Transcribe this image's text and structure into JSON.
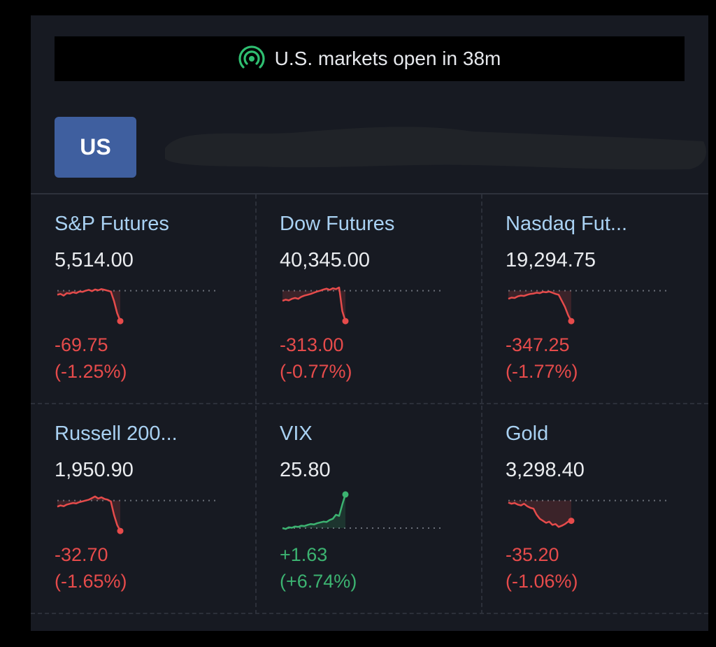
{
  "banner": {
    "text": "U.S. markets open in 38m",
    "icon": "broadcast-icon",
    "icon_color": "#2fbf71"
  },
  "region_tab": {
    "label": "US",
    "color": "#3f5f9f"
  },
  "colors": {
    "positive": "#3cb371",
    "negative": "#e64b4b",
    "name": "#a9d1f2",
    "price": "#eaecef"
  },
  "cards": [
    {
      "name": "S&P Futures",
      "price": "5,514.00",
      "change": "-69.75",
      "change_pct": "(-1.25%)",
      "direction": "down",
      "spark": [
        0.7,
        0.72,
        0.68,
        0.74,
        0.73,
        0.76,
        0.74,
        0.78,
        0.77,
        0.8,
        0.82,
        0.79,
        0.83,
        0.81,
        0.84,
        0.82,
        0.8,
        0.78,
        0.55,
        0.25,
        0.05
      ]
    },
    {
      "name": "Dow Futures",
      "price": "40,345.00",
      "change": "-313.00",
      "change_pct": "(-0.77%)",
      "direction": "down",
      "spark": [
        0.55,
        0.58,
        0.56,
        0.6,
        0.62,
        0.6,
        0.65,
        0.68,
        0.7,
        0.72,
        0.75,
        0.78,
        0.8,
        0.83,
        0.85,
        0.82,
        0.86,
        0.84,
        0.88,
        0.3,
        0.05
      ]
    },
    {
      "name": "Nasdaq Fut...",
      "price": "19,294.75",
      "change": "-347.25",
      "change_pct": "(-1.77%)",
      "direction": "down",
      "spark": [
        0.6,
        0.63,
        0.62,
        0.66,
        0.68,
        0.67,
        0.7,
        0.72,
        0.73,
        0.75,
        0.74,
        0.77,
        0.76,
        0.78,
        0.75,
        0.72,
        0.7,
        0.55,
        0.4,
        0.2,
        0.05
      ]
    },
    {
      "name": "Russell 200...",
      "price": "1,950.90",
      "change": "-32.70",
      "change_pct": "(-1.65%)",
      "direction": "down",
      "spark": [
        0.65,
        0.68,
        0.66,
        0.7,
        0.72,
        0.74,
        0.73,
        0.76,
        0.78,
        0.8,
        0.82,
        0.86,
        0.9,
        0.85,
        0.88,
        0.84,
        0.82,
        0.78,
        0.45,
        0.2,
        0.05
      ]
    },
    {
      "name": "VIX",
      "price": "25.80",
      "change": "+1.63",
      "change_pct": "(+6.74%)",
      "direction": "up",
      "spark": [
        0.12,
        0.1,
        0.14,
        0.13,
        0.16,
        0.15,
        0.18,
        0.17,
        0.2,
        0.22,
        0.21,
        0.24,
        0.26,
        0.28,
        0.27,
        0.32,
        0.35,
        0.45,
        0.42,
        0.7,
        0.95
      ]
    },
    {
      "name": "Gold",
      "price": "3,298.40",
      "change": "-35.20",
      "change_pct": "(-1.06%)",
      "direction": "down",
      "spark": [
        0.75,
        0.72,
        0.74,
        0.7,
        0.68,
        0.72,
        0.66,
        0.62,
        0.6,
        0.45,
        0.35,
        0.3,
        0.25,
        0.28,
        0.2,
        0.22,
        0.15,
        0.18,
        0.22,
        0.28,
        0.3
      ]
    }
  ]
}
